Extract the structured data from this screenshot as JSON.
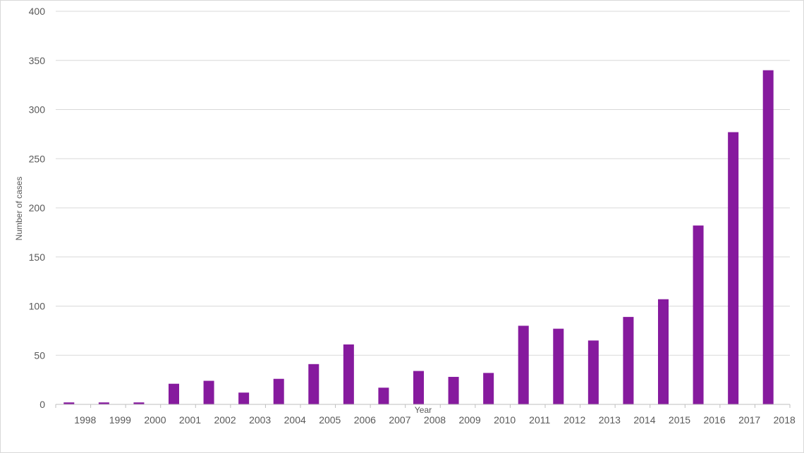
{
  "chart_data": {
    "type": "bar",
    "title": "",
    "xlabel": "Year",
    "ylabel": "Number of cases",
    "categories": [
      "1998",
      "1999",
      "2000",
      "2001",
      "2002",
      "2003",
      "2004",
      "2005",
      "2006",
      "2007",
      "2008",
      "2009",
      "2010",
      "2011",
      "2012",
      "2013",
      "2014",
      "2015",
      "2016",
      "2017",
      "2018"
    ],
    "values": [
      2,
      2,
      2,
      21,
      24,
      12,
      26,
      41,
      61,
      17,
      34,
      28,
      32,
      80,
      77,
      65,
      89,
      107,
      182,
      277,
      340
    ],
    "ylim": [
      0,
      400
    ],
    "yticks": [
      "0",
      "50",
      "100",
      "150",
      "200",
      "250",
      "300",
      "350",
      "400"
    ],
    "grid": true,
    "legend": "none",
    "bar_color": "#861A9E",
    "grid_color": "#d9d9d9",
    "axis_color": "#bfbfbf"
  }
}
